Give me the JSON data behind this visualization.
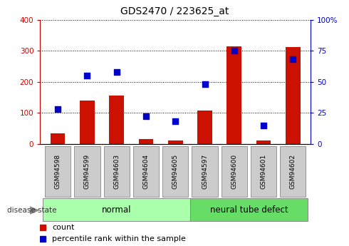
{
  "title": "GDS2470 / 223625_at",
  "samples": [
    "GSM94598",
    "GSM94599",
    "GSM94603",
    "GSM94604",
    "GSM94605",
    "GSM94597",
    "GSM94600",
    "GSM94601",
    "GSM94602"
  ],
  "counts": [
    35,
    140,
    155,
    15,
    10,
    108,
    315,
    12,
    312
  ],
  "percentiles": [
    28,
    55,
    58,
    22,
    18,
    48,
    75,
    15,
    68
  ],
  "groups": [
    {
      "label": "normal",
      "start": 0,
      "end": 5,
      "color": "#aaffaa"
    },
    {
      "label": "neural tube defect",
      "start": 5,
      "end": 9,
      "color": "#66dd66"
    }
  ],
  "left_axis_color": "#cc0000",
  "right_axis_color": "#0000cc",
  "bar_color": "#cc1100",
  "dot_color": "#0000cc",
  "ylim_left": [
    0,
    400
  ],
  "ylim_right": [
    0,
    100
  ],
  "yticks_left": [
    0,
    100,
    200,
    300,
    400
  ],
  "yticks_right": [
    0,
    25,
    50,
    75,
    100
  ],
  "bar_width": 0.5,
  "disease_state_label": "disease state",
  "legend_count": "count",
  "legend_percentile": "percentile rank within the sample",
  "bg_color": "#ffffff",
  "plot_bg": "#ffffff",
  "label_box_color": "#cccccc",
  "label_box_edge": "#888888"
}
